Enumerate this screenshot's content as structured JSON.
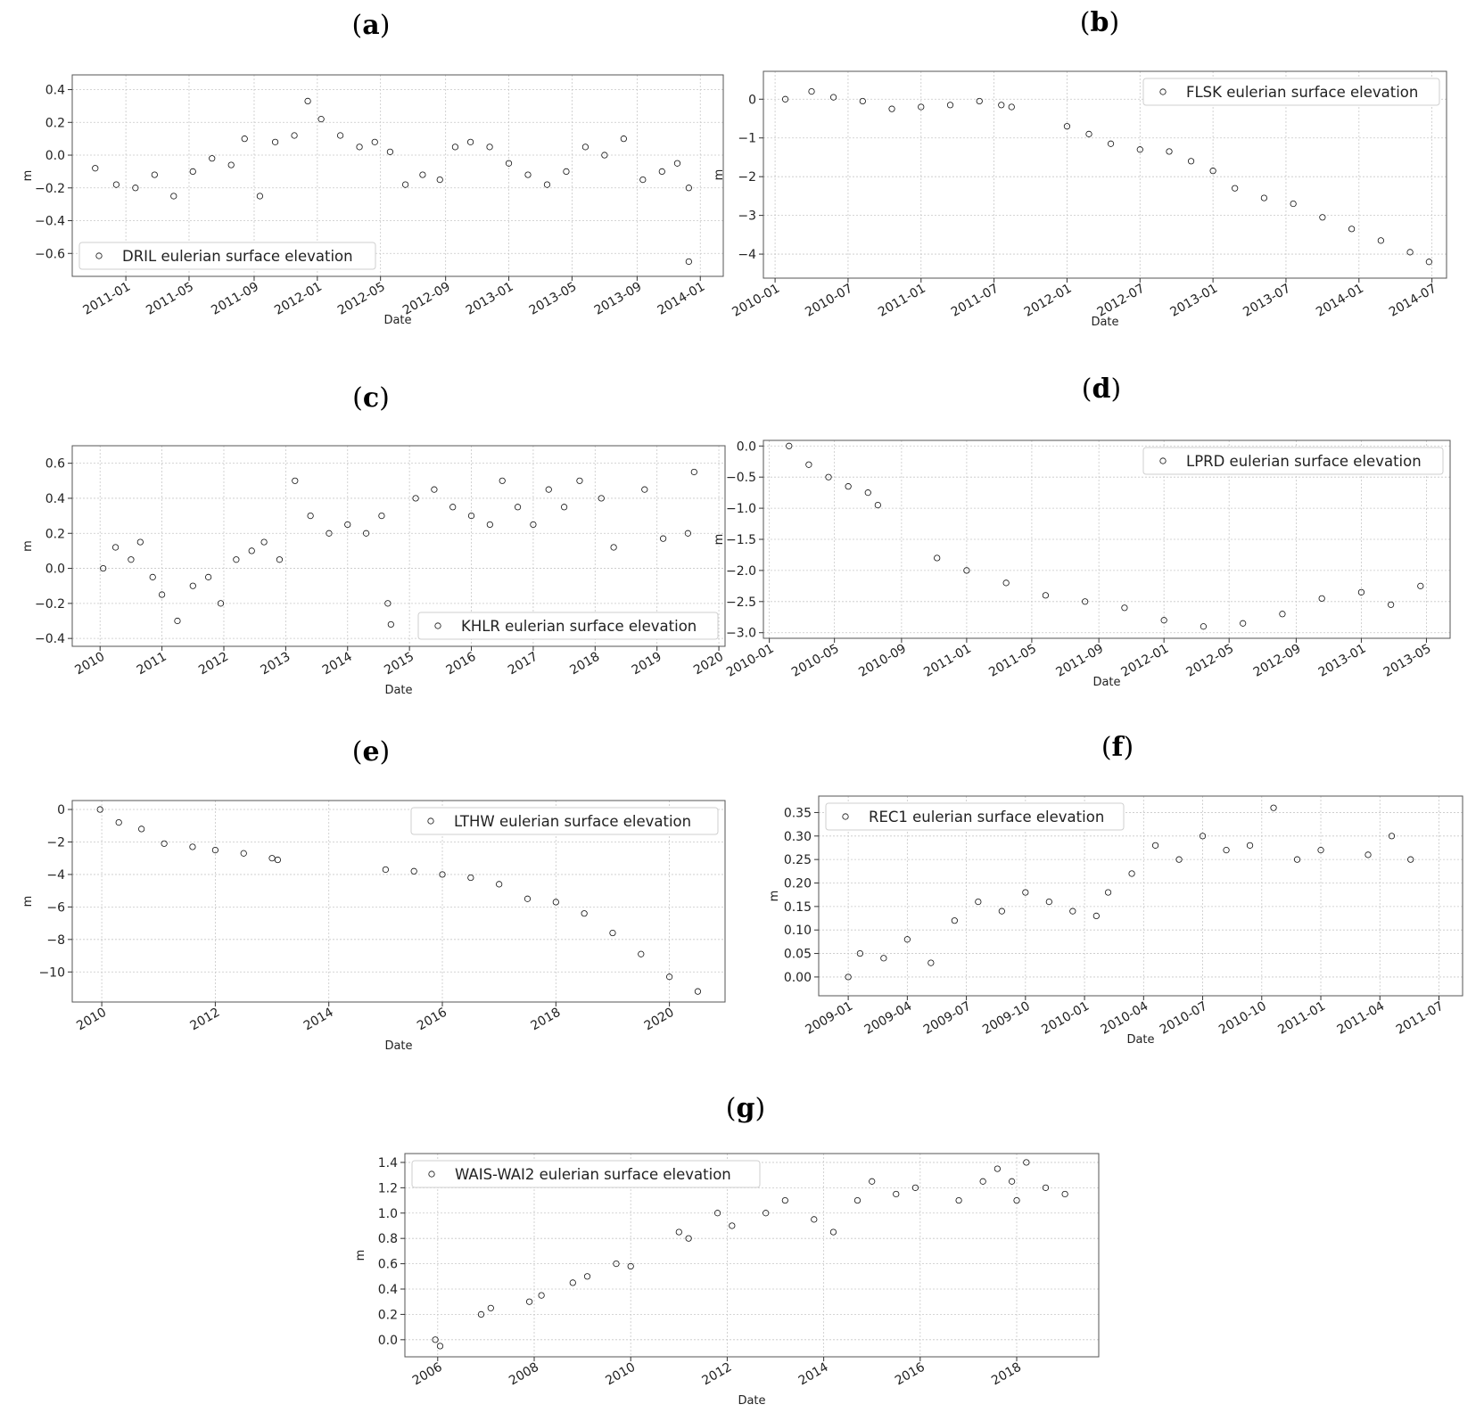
{
  "chart_data": [
    {
      "id": "a",
      "panel_label": "a",
      "type": "scatter",
      "legend": "DRIL eulerian surface elevation",
      "legend_loc": "lower-left",
      "xlabel": "Date",
      "ylabel": "m",
      "xlim": [
        2010.72,
        2014.12
      ],
      "ylim": [
        -0.74,
        0.49
      ],
      "xticks": [
        2011.0,
        2011.33,
        2011.67,
        2012.0,
        2012.33,
        2012.67,
        2013.0,
        2013.33,
        2013.67,
        2014.0
      ],
      "xtick_labels": [
        "2011-01",
        "2011-05",
        "2011-09",
        "2012-01",
        "2012-05",
        "2012-09",
        "2013-01",
        "2013-05",
        "2013-09",
        "2014-01"
      ],
      "yticks": [
        -0.6,
        -0.4,
        -0.2,
        0.0,
        0.2,
        0.4
      ],
      "ytick_labels": [
        "−0.6",
        "−0.4",
        "−0.2",
        "0.0",
        "0.2",
        "0.4"
      ],
      "series_points": [
        {
          "x": 2010.84,
          "y": -0.08
        },
        {
          "x": 2010.95,
          "y": -0.18
        },
        {
          "x": 2011.05,
          "y": -0.2
        },
        {
          "x": 2011.15,
          "y": -0.12
        },
        {
          "x": 2011.25,
          "y": -0.25
        },
        {
          "x": 2011.35,
          "y": -0.1
        },
        {
          "x": 2011.45,
          "y": -0.02
        },
        {
          "x": 2011.55,
          "y": -0.06
        },
        {
          "x": 2011.62,
          "y": 0.1
        },
        {
          "x": 2011.7,
          "y": -0.25
        },
        {
          "x": 2011.78,
          "y": 0.08
        },
        {
          "x": 2011.88,
          "y": 0.12
        },
        {
          "x": 2011.95,
          "y": 0.33
        },
        {
          "x": 2012.02,
          "y": 0.22
        },
        {
          "x": 2012.12,
          "y": 0.12
        },
        {
          "x": 2012.22,
          "y": 0.05
        },
        {
          "x": 2012.3,
          "y": 0.08
        },
        {
          "x": 2012.38,
          "y": 0.02
        },
        {
          "x": 2012.46,
          "y": -0.18
        },
        {
          "x": 2012.55,
          "y": -0.12
        },
        {
          "x": 2012.64,
          "y": -0.15
        },
        {
          "x": 2012.72,
          "y": 0.05
        },
        {
          "x": 2012.8,
          "y": 0.08
        },
        {
          "x": 2012.9,
          "y": 0.05
        },
        {
          "x": 2013.0,
          "y": -0.05
        },
        {
          "x": 2013.1,
          "y": -0.12
        },
        {
          "x": 2013.2,
          "y": -0.18
        },
        {
          "x": 2013.3,
          "y": -0.1
        },
        {
          "x": 2013.4,
          "y": 0.05
        },
        {
          "x": 2013.5,
          "y": 0.0
        },
        {
          "x": 2013.6,
          "y": 0.1
        },
        {
          "x": 2013.7,
          "y": -0.15
        },
        {
          "x": 2013.8,
          "y": -0.1
        },
        {
          "x": 2013.88,
          "y": -0.05
        },
        {
          "x": 2013.94,
          "y": -0.2
        },
        {
          "x": 2013.94,
          "y": -0.65
        }
      ]
    },
    {
      "id": "b",
      "panel_label": "b",
      "type": "scatter",
      "legend": "FLSK eulerian surface elevation",
      "legend_loc": "upper-right",
      "xlabel": "Date",
      "ylabel": "m",
      "xlim": [
        2009.92,
        2014.6
      ],
      "ylim": [
        -4.62,
        0.72
      ],
      "xticks": [
        2010.0,
        2010.5,
        2011.0,
        2011.5,
        2012.0,
        2012.5,
        2013.0,
        2013.5,
        2014.0,
        2014.5
      ],
      "xtick_labels": [
        "2010-01",
        "2010-07",
        "2011-01",
        "2011-07",
        "2012-01",
        "2012-07",
        "2013-01",
        "2013-07",
        "2014-01",
        "2014-07"
      ],
      "yticks": [
        -4,
        -3,
        -2,
        -1,
        0
      ],
      "ytick_labels": [
        "−4",
        "−3",
        "−2",
        "−1",
        "0"
      ],
      "series_points": [
        {
          "x": 2010.07,
          "y": 0.0
        },
        {
          "x": 2010.25,
          "y": 0.2
        },
        {
          "x": 2010.4,
          "y": 0.05
        },
        {
          "x": 2010.6,
          "y": -0.05
        },
        {
          "x": 2010.8,
          "y": -0.25
        },
        {
          "x": 2011.0,
          "y": -0.2
        },
        {
          "x": 2011.2,
          "y": -0.15
        },
        {
          "x": 2011.4,
          "y": -0.05
        },
        {
          "x": 2011.55,
          "y": -0.15
        },
        {
          "x": 2011.62,
          "y": -0.2
        },
        {
          "x": 2012.0,
          "y": -0.7
        },
        {
          "x": 2012.15,
          "y": -0.9
        },
        {
          "x": 2012.3,
          "y": -1.15
        },
        {
          "x": 2012.5,
          "y": -1.3
        },
        {
          "x": 2012.7,
          "y": -1.35
        },
        {
          "x": 2012.85,
          "y": -1.6
        },
        {
          "x": 2013.0,
          "y": -1.85
        },
        {
          "x": 2013.15,
          "y": -2.3
        },
        {
          "x": 2013.35,
          "y": -2.55
        },
        {
          "x": 2013.55,
          "y": -2.7
        },
        {
          "x": 2013.75,
          "y": -3.05
        },
        {
          "x": 2013.95,
          "y": -3.35
        },
        {
          "x": 2014.15,
          "y": -3.65
        },
        {
          "x": 2014.35,
          "y": -3.95
        },
        {
          "x": 2014.48,
          "y": -4.2
        }
      ]
    },
    {
      "id": "c",
      "panel_label": "c",
      "type": "scatter",
      "legend": "KHLR eulerian surface elevation",
      "legend_loc": "lower-right",
      "xlabel": "Date",
      "ylabel": "m",
      "xlim": [
        2009.55,
        2020.1
      ],
      "ylim": [
        -0.445,
        0.7
      ],
      "xticks": [
        2010,
        2011,
        2012,
        2013,
        2014,
        2015,
        2016,
        2017,
        2018,
        2019,
        2020
      ],
      "xtick_labels": [
        "2010",
        "2011",
        "2012",
        "2013",
        "2014",
        "2015",
        "2016",
        "2017",
        "2018",
        "2019",
        "2020"
      ],
      "yticks": [
        -0.4,
        -0.2,
        0.0,
        0.2,
        0.4,
        0.6
      ],
      "ytick_labels": [
        "−0.4",
        "−0.2",
        "0.0",
        "0.2",
        "0.4",
        "0.6"
      ],
      "series_points": [
        {
          "x": 2010.05,
          "y": 0.0
        },
        {
          "x": 2010.25,
          "y": 0.12
        },
        {
          "x": 2010.5,
          "y": 0.05
        },
        {
          "x": 2010.65,
          "y": 0.15
        },
        {
          "x": 2010.85,
          "y": -0.05
        },
        {
          "x": 2011.0,
          "y": -0.15
        },
        {
          "x": 2011.25,
          "y": -0.3
        },
        {
          "x": 2011.5,
          "y": -0.1
        },
        {
          "x": 2011.75,
          "y": -0.05
        },
        {
          "x": 2011.95,
          "y": -0.2
        },
        {
          "x": 2012.2,
          "y": 0.05
        },
        {
          "x": 2012.45,
          "y": 0.1
        },
        {
          "x": 2012.65,
          "y": 0.15
        },
        {
          "x": 2012.9,
          "y": 0.05
        },
        {
          "x": 2013.15,
          "y": 0.5
        },
        {
          "x": 2013.4,
          "y": 0.3
        },
        {
          "x": 2013.7,
          "y": 0.2
        },
        {
          "x": 2014.0,
          "y": 0.25
        },
        {
          "x": 2014.3,
          "y": 0.2
        },
        {
          "x": 2014.55,
          "y": 0.3
        },
        {
          "x": 2014.65,
          "y": -0.2
        },
        {
          "x": 2014.7,
          "y": -0.32
        },
        {
          "x": 2015.1,
          "y": 0.4
        },
        {
          "x": 2015.4,
          "y": 0.45
        },
        {
          "x": 2015.7,
          "y": 0.35
        },
        {
          "x": 2016.0,
          "y": 0.3
        },
        {
          "x": 2016.3,
          "y": 0.25
        },
        {
          "x": 2016.5,
          "y": 0.5
        },
        {
          "x": 2016.75,
          "y": 0.35
        },
        {
          "x": 2017.0,
          "y": 0.25
        },
        {
          "x": 2017.25,
          "y": 0.45
        },
        {
          "x": 2017.5,
          "y": 0.35
        },
        {
          "x": 2017.75,
          "y": 0.5
        },
        {
          "x": 2018.1,
          "y": 0.4
        },
        {
          "x": 2018.3,
          "y": 0.12
        },
        {
          "x": 2018.8,
          "y": 0.45
        },
        {
          "x": 2019.1,
          "y": 0.17
        },
        {
          "x": 2019.5,
          "y": 0.2
        },
        {
          "x": 2019.6,
          "y": 0.55
        }
      ]
    },
    {
      "id": "d",
      "panel_label": "d",
      "type": "scatter",
      "legend": "LPRD eulerian surface elevation",
      "legend_loc": "upper-right",
      "xlabel": "Date",
      "ylabel": "m",
      "xlim": [
        2009.97,
        2013.45
      ],
      "ylim": [
        -3.09,
        0.09
      ],
      "xticks": [
        2010.0,
        2010.33,
        2010.67,
        2011.0,
        2011.33,
        2011.67,
        2012.0,
        2012.33,
        2012.67,
        2013.0,
        2013.33
      ],
      "xtick_labels": [
        "2010-01",
        "2010-05",
        "2010-09",
        "2011-01",
        "2011-05",
        "2011-09",
        "2012-01",
        "2012-05",
        "2012-09",
        "2013-01",
        "2013-05"
      ],
      "yticks": [
        -3.0,
        -2.5,
        -2.0,
        -1.5,
        -1.0,
        -0.5,
        0.0
      ],
      "ytick_labels": [
        "−3.0",
        "−2.5",
        "−2.0",
        "−1.5",
        "−1.0",
        "−0.5",
        "0.0"
      ],
      "series_points": [
        {
          "x": 2010.1,
          "y": 0.0
        },
        {
          "x": 2010.2,
          "y": -0.3
        },
        {
          "x": 2010.3,
          "y": -0.5
        },
        {
          "x": 2010.4,
          "y": -0.65
        },
        {
          "x": 2010.5,
          "y": -0.75
        },
        {
          "x": 2010.55,
          "y": -0.95
        },
        {
          "x": 2010.85,
          "y": -1.8
        },
        {
          "x": 2011.0,
          "y": -2.0
        },
        {
          "x": 2011.2,
          "y": -2.2
        },
        {
          "x": 2011.4,
          "y": -2.4
        },
        {
          "x": 2011.6,
          "y": -2.5
        },
        {
          "x": 2011.8,
          "y": -2.6
        },
        {
          "x": 2012.0,
          "y": -2.8
        },
        {
          "x": 2012.2,
          "y": -2.9
        },
        {
          "x": 2012.4,
          "y": -2.85
        },
        {
          "x": 2012.6,
          "y": -2.7
        },
        {
          "x": 2012.8,
          "y": -2.45
        },
        {
          "x": 2013.0,
          "y": -2.35
        },
        {
          "x": 2013.15,
          "y": -2.55
        },
        {
          "x": 2013.3,
          "y": -2.25
        }
      ]
    },
    {
      "id": "e",
      "panel_label": "e",
      "type": "scatter",
      "legend": "LTHW eulerian surface elevation",
      "legend_loc": "upper-right",
      "xlabel": "Date",
      "ylabel": "m",
      "xlim": [
        2009.48,
        2020.98
      ],
      "ylim": [
        -11.85,
        0.55
      ],
      "xticks": [
        2010,
        2012,
        2014,
        2016,
        2018,
        2020
      ],
      "xtick_labels": [
        "2010",
        "2012",
        "2014",
        "2016",
        "2018",
        "2020"
      ],
      "yticks": [
        -10,
        -8,
        -6,
        -4,
        -2,
        0
      ],
      "ytick_labels": [
        "−10",
        "−8",
        "−6",
        "−4",
        "−2",
        "0"
      ],
      "series_points": [
        {
          "x": 2009.97,
          "y": 0.0
        },
        {
          "x": 2010.3,
          "y": -0.8
        },
        {
          "x": 2010.7,
          "y": -1.2
        },
        {
          "x": 2011.1,
          "y": -2.1
        },
        {
          "x": 2011.6,
          "y": -2.3
        },
        {
          "x": 2012.0,
          "y": -2.5
        },
        {
          "x": 2012.5,
          "y": -2.7
        },
        {
          "x": 2013.0,
          "y": -3.0
        },
        {
          "x": 2013.1,
          "y": -3.1
        },
        {
          "x": 2015.0,
          "y": -3.7
        },
        {
          "x": 2015.5,
          "y": -3.8
        },
        {
          "x": 2016.0,
          "y": -4.0
        },
        {
          "x": 2016.5,
          "y": -4.2
        },
        {
          "x": 2017.0,
          "y": -4.6
        },
        {
          "x": 2017.5,
          "y": -5.5
        },
        {
          "x": 2018.0,
          "y": -5.7
        },
        {
          "x": 2018.5,
          "y": -6.4
        },
        {
          "x": 2019.0,
          "y": -7.6
        },
        {
          "x": 2019.5,
          "y": -8.9
        },
        {
          "x": 2020.0,
          "y": -10.3
        },
        {
          "x": 2020.5,
          "y": -11.2
        }
      ]
    },
    {
      "id": "f",
      "panel_label": "f",
      "type": "scatter",
      "legend": "REC1 eulerian surface elevation",
      "legend_loc": "upper-left",
      "xlabel": "Date",
      "ylabel": "m",
      "xlim": [
        2008.875,
        2011.6
      ],
      "ylim": [
        -0.04,
        0.385
      ],
      "xticks": [
        2009.0,
        2009.25,
        2009.5,
        2009.75,
        2010.0,
        2010.25,
        2010.5,
        2010.75,
        2011.0,
        2011.25,
        2011.5
      ],
      "xtick_labels": [
        "2009-01",
        "2009-04",
        "2009-07",
        "2009-10",
        "2010-01",
        "2010-04",
        "2010-07",
        "2010-10",
        "2011-01",
        "2011-04",
        "2011-07"
      ],
      "yticks": [
        0.0,
        0.05,
        0.1,
        0.15,
        0.2,
        0.25,
        0.3,
        0.35
      ],
      "ytick_labels": [
        "0.00",
        "0.05",
        "0.10",
        "0.15",
        "0.20",
        "0.25",
        "0.30",
        "0.35"
      ],
      "series_points": [
        {
          "x": 2009.0,
          "y": 0.0
        },
        {
          "x": 2009.05,
          "y": 0.05
        },
        {
          "x": 2009.15,
          "y": 0.04
        },
        {
          "x": 2009.25,
          "y": 0.08
        },
        {
          "x": 2009.35,
          "y": 0.03
        },
        {
          "x": 2009.45,
          "y": 0.12
        },
        {
          "x": 2009.55,
          "y": 0.16
        },
        {
          "x": 2009.65,
          "y": 0.14
        },
        {
          "x": 2009.75,
          "y": 0.18
        },
        {
          "x": 2009.85,
          "y": 0.16
        },
        {
          "x": 2009.95,
          "y": 0.14
        },
        {
          "x": 2010.05,
          "y": 0.13
        },
        {
          "x": 2010.1,
          "y": 0.18
        },
        {
          "x": 2010.2,
          "y": 0.22
        },
        {
          "x": 2010.3,
          "y": 0.28
        },
        {
          "x": 2010.4,
          "y": 0.25
        },
        {
          "x": 2010.5,
          "y": 0.3
        },
        {
          "x": 2010.6,
          "y": 0.27
        },
        {
          "x": 2010.7,
          "y": 0.28
        },
        {
          "x": 2010.8,
          "y": 0.36
        },
        {
          "x": 2010.9,
          "y": 0.25
        },
        {
          "x": 2011.0,
          "y": 0.27
        },
        {
          "x": 2011.2,
          "y": 0.26
        },
        {
          "x": 2011.3,
          "y": 0.3
        },
        {
          "x": 2011.38,
          "y": 0.25
        }
      ]
    },
    {
      "id": "g",
      "panel_label": "g",
      "type": "scatter",
      "legend": "WAIS-WAI2 eulerian surface elevation",
      "legend_loc": "upper-left",
      "xlabel": "Date",
      "ylabel": "m",
      "xlim": [
        2005.32,
        2019.7
      ],
      "ylim": [
        -0.135,
        1.47
      ],
      "xticks": [
        2006,
        2008,
        2010,
        2012,
        2014,
        2016,
        2018
      ],
      "xtick_labels": [
        "2006",
        "2008",
        "2010",
        "2012",
        "2014",
        "2016",
        "2018"
      ],
      "yticks": [
        0.0,
        0.2,
        0.4,
        0.6,
        0.8,
        1.0,
        1.2,
        1.4
      ],
      "ytick_labels": [
        "0.0",
        "0.2",
        "0.4",
        "0.6",
        "0.8",
        "1.0",
        "1.2",
        "1.4"
      ],
      "series_points": [
        {
          "x": 2005.95,
          "y": 0.0
        },
        {
          "x": 2006.05,
          "y": -0.05
        },
        {
          "x": 2006.9,
          "y": 0.2
        },
        {
          "x": 2007.1,
          "y": 0.25
        },
        {
          "x": 2007.9,
          "y": 0.3
        },
        {
          "x": 2008.15,
          "y": 0.35
        },
        {
          "x": 2008.8,
          "y": 0.45
        },
        {
          "x": 2009.1,
          "y": 0.5
        },
        {
          "x": 2009.7,
          "y": 0.6
        },
        {
          "x": 2010.0,
          "y": 0.58
        },
        {
          "x": 2011.0,
          "y": 0.85
        },
        {
          "x": 2011.2,
          "y": 0.8
        },
        {
          "x": 2011.8,
          "y": 1.0
        },
        {
          "x": 2012.1,
          "y": 0.9
        },
        {
          "x": 2012.8,
          "y": 1.0
        },
        {
          "x": 2013.2,
          "y": 1.1
        },
        {
          "x": 2013.8,
          "y": 0.95
        },
        {
          "x": 2014.2,
          "y": 0.85
        },
        {
          "x": 2014.7,
          "y": 1.1
        },
        {
          "x": 2015.0,
          "y": 1.25
        },
        {
          "x": 2015.5,
          "y": 1.15
        },
        {
          "x": 2015.9,
          "y": 1.2
        },
        {
          "x": 2016.8,
          "y": 1.1
        },
        {
          "x": 2017.3,
          "y": 1.25
        },
        {
          "x": 2017.6,
          "y": 1.35
        },
        {
          "x": 2017.9,
          "y": 1.25
        },
        {
          "x": 2018.0,
          "y": 1.1
        },
        {
          "x": 2018.2,
          "y": 1.4
        },
        {
          "x": 2018.6,
          "y": 1.2
        },
        {
          "x": 2019.0,
          "y": 1.15
        }
      ]
    }
  ]
}
